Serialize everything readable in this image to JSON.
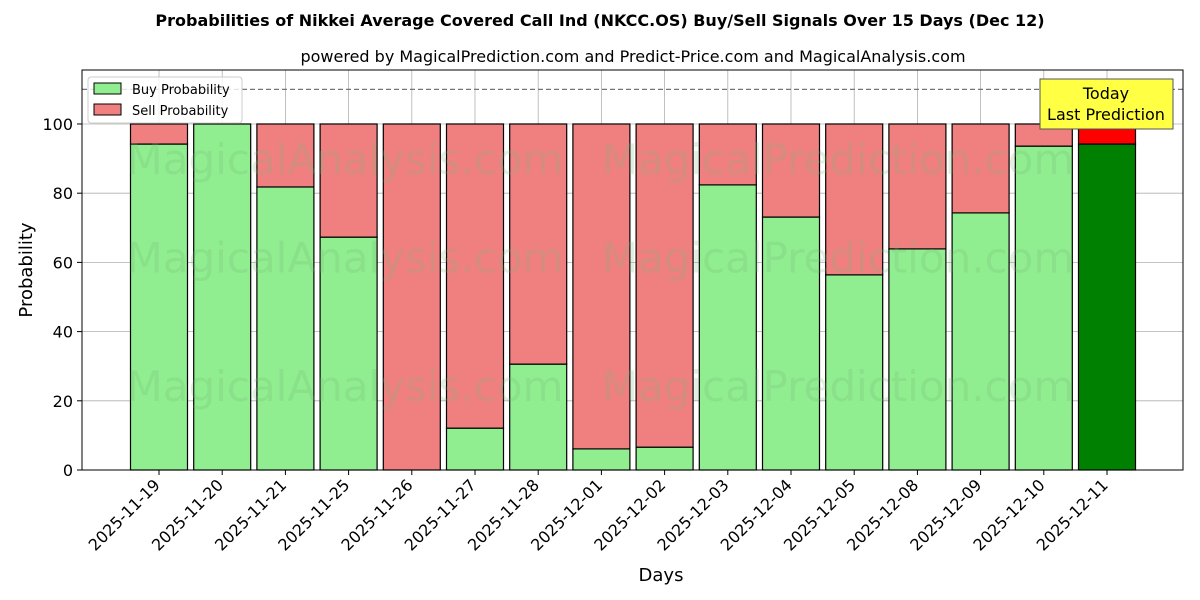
{
  "chart_data": {
    "type": "bar",
    "stacked": true,
    "title": "Probabilities of Nikkei Average Covered Call Ind (NKCC.OS) Buy/Sell Signals Over 15 Days (Dec 12)",
    "subtitle": "powered by MagicalPrediction.com and Predict-Price.com and MagicalAnalysis.com",
    "xlabel": "Days",
    "ylabel": "Probability",
    "ylim": [
      0,
      115.6
    ],
    "yticks": [
      0,
      20,
      40,
      60,
      80,
      100
    ],
    "grid": true,
    "reference_line": 110,
    "categories": [
      "2025-11-19",
      "2025-11-20",
      "2025-11-21",
      "2025-11-25",
      "2025-11-26",
      "2025-11-27",
      "2025-11-28",
      "2025-12-01",
      "2025-12-02",
      "2025-12-03",
      "2025-12-04",
      "2025-12-05",
      "2025-12-08",
      "2025-12-09",
      "2025-12-10",
      "2025-12-11"
    ],
    "series": [
      {
        "name": "Buy Probability",
        "color": "#90ee90",
        "values": [
          94.2,
          100,
          81.8,
          67.3,
          0,
          12.1,
          30.6,
          6.1,
          6.6,
          82.4,
          73.1,
          56.4,
          63.9,
          74.3,
          93.6,
          94.2
        ]
      },
      {
        "name": "Sell Probability",
        "color": "#f08080",
        "values": [
          5.8,
          0,
          18.2,
          32.7,
          100,
          87.9,
          69.4,
          93.9,
          93.4,
          17.6,
          26.9,
          43.6,
          36.1,
          25.7,
          6.4,
          5.8
        ]
      }
    ],
    "highlight": {
      "index": 15,
      "buy_color": "#008000",
      "sell_color": "#ff0000"
    },
    "annotation": {
      "line1": "Today",
      "line2": "Last Prediction"
    },
    "legend_position": "top-left",
    "watermarks": [
      "MagicalAnalysis.com",
      "MagicalPrediction.com"
    ]
  }
}
